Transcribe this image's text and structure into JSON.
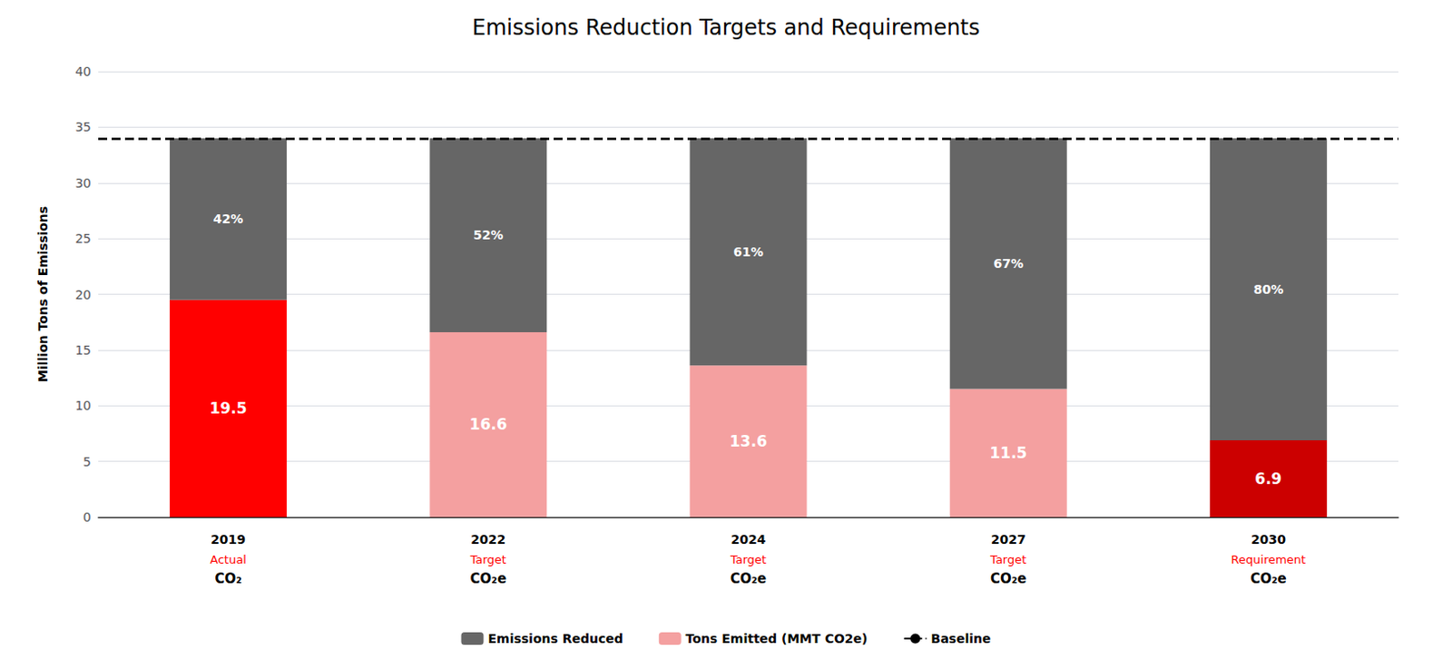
{
  "chart_data": {
    "type": "bar",
    "title": "Emissions Reduction Targets and Requirements",
    "y_label": "Million Tons of Emissions",
    "categories": [
      "2019",
      "2022",
      "2024",
      "2027",
      "2030"
    ],
    "category_sublabels": [
      {
        "labels": [
          "Actual",
          "Target",
          "Target",
          "Target",
          "Requirement"
        ],
        "color": "#ff0000"
      },
      {
        "labels": [
          "CO₂",
          "CO₂e",
          "CO₂e",
          "CO₂e",
          "CO₂e"
        ],
        "color": "#000000"
      }
    ],
    "stacked": true,
    "series": [
      {
        "name": "Tons Emitted (MMT CO2e)",
        "color": "#f4a0a0",
        "colors": [
          "#ff0000",
          "#f4a0a0",
          "#f4a0a0",
          "#f4a0a0",
          "#cc0000"
        ],
        "values": [
          19.5,
          16.6,
          13.6,
          11.5,
          6.9
        ],
        "data_labels": true
      },
      {
        "name": "Emissions Reduced",
        "color": "#666666",
        "values": [
          14.5,
          17.4,
          20.4,
          22.5,
          27.1
        ],
        "annotations": [
          "42%",
          "52%",
          "61%",
          "67%",
          "80%"
        ]
      }
    ],
    "baseline": {
      "name": "Baseline",
      "value": 34.0,
      "color": "#000000",
      "line_style": "dashed"
    },
    "ylim": [
      0,
      40
    ],
    "yticks": [
      0,
      5,
      10,
      15,
      20,
      25,
      30,
      35,
      40
    ],
    "grid": true,
    "legend": "bottom"
  }
}
